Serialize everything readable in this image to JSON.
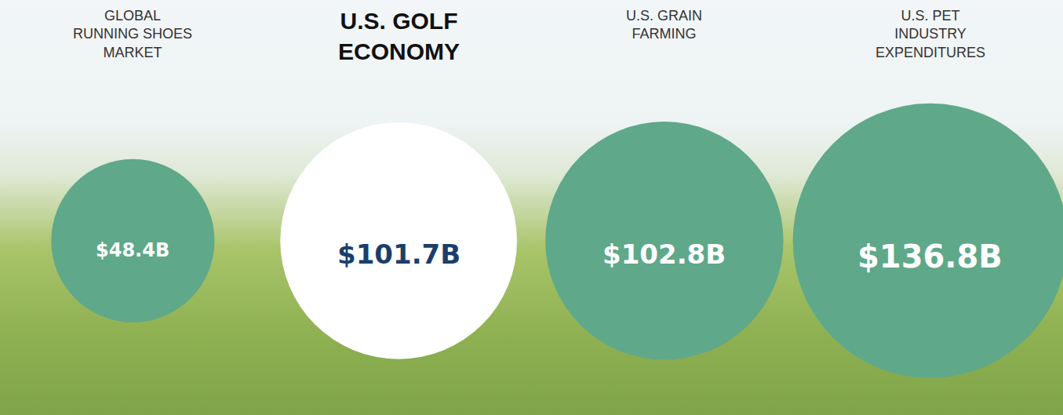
{
  "chart_data": {
    "type": "bubble",
    "categories": [
      "GLOBAL RUNNING SHOES MARKET",
      "U.S. GOLF ECONOMY",
      "U.S. GRAIN FARMING",
      "U.S. PET INDUSTRY EXPENDITURES"
    ],
    "values": [
      48.4,
      101.7,
      102.8,
      136.8
    ],
    "value_labels": [
      "$48.4B",
      "$101.7B",
      "$102.8B",
      "$136.8B"
    ],
    "colors": [
      "#5fa88a",
      "#ffffff",
      "#5fa88a",
      "#5fa88a"
    ],
    "data_labels": true,
    "tick_labels": false
  }
}
